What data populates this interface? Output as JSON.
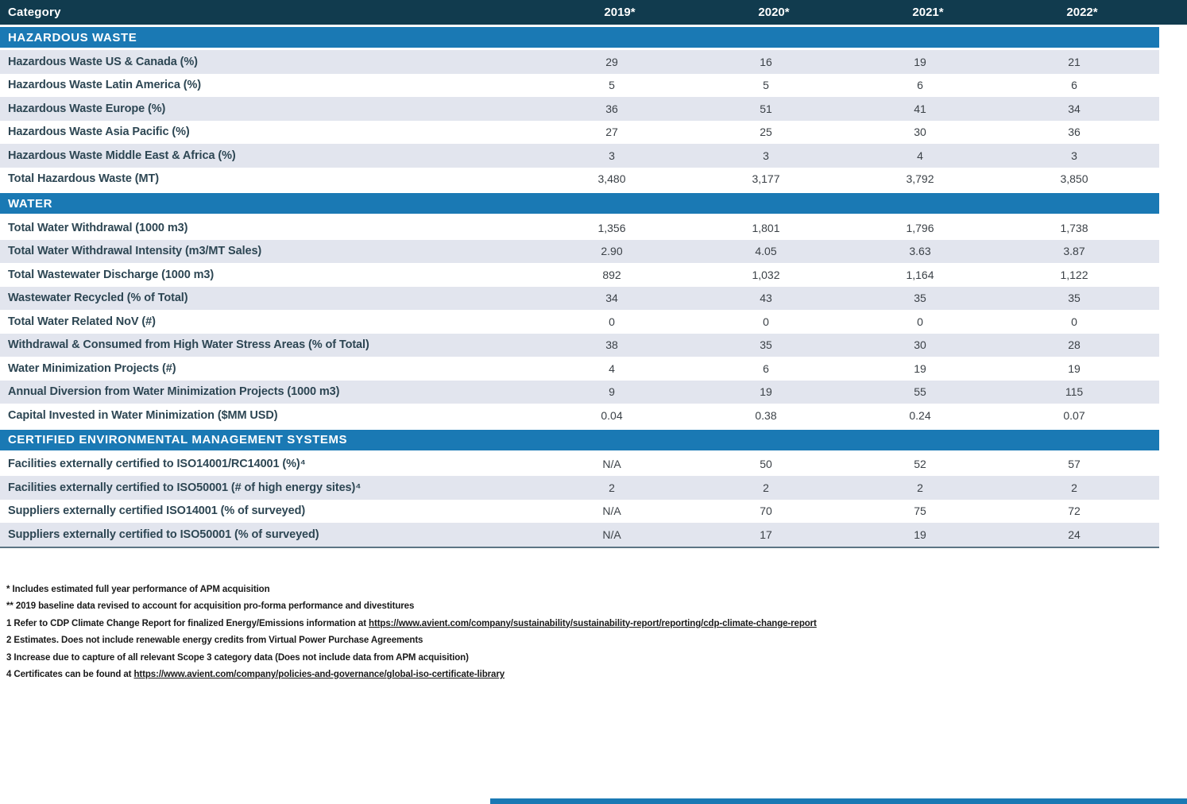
{
  "colors": {
    "header_bg": "#113b4e",
    "section_band_bg": "#1a79b4",
    "shaded_row_bg": "#e2e5ee",
    "label_text": "#2d4653",
    "footer_bar": "#1a79b4"
  },
  "table": {
    "header": {
      "category_label": "Category",
      "years": [
        "2019*",
        "2020*",
        "2021*",
        "2022*"
      ]
    },
    "sections": [
      {
        "title": "HAZARDOUS WASTE",
        "rows": [
          {
            "label": "Hazardous Waste US & Canada (%)",
            "values": [
              "29",
              "16",
              "19",
              "21"
            ]
          },
          {
            "label": "Hazardous Waste Latin America (%)",
            "values": [
              "5",
              "5",
              "6",
              "6"
            ]
          },
          {
            "label": "Hazardous Waste Europe (%)",
            "values": [
              "36",
              "51",
              "41",
              "34"
            ]
          },
          {
            "label": "Hazardous Waste Asia Pacific (%)",
            "values": [
              "27",
              "25",
              "30",
              "36"
            ]
          },
          {
            "label": "Hazardous Waste Middle East & Africa (%)",
            "values": [
              "3",
              "3",
              "4",
              "3"
            ]
          },
          {
            "label": "Total Hazardous Waste (MT)",
            "values": [
              "3,480",
              "3,177",
              "3,792",
              "3,850"
            ]
          }
        ]
      },
      {
        "title": "WATER",
        "rows": [
          {
            "label": "Total Water Withdrawal (1000 m3)",
            "values": [
              "1,356",
              "1,801",
              "1,796",
              "1,738"
            ]
          },
          {
            "label": "Total Water Withdrawal Intensity (m3/MT Sales)",
            "values": [
              "2.90",
              "4.05",
              "3.63",
              "3.87"
            ]
          },
          {
            "label": "Total Wastewater Discharge (1000 m3)",
            "values": [
              "892",
              "1,032",
              "1,164",
              "1,122"
            ]
          },
          {
            "label": "Wastewater Recycled (% of Total)",
            "values": [
              "34",
              "43",
              "35",
              "35"
            ]
          },
          {
            "label": "Total Water Related NoV (#)",
            "values": [
              "0",
              "0",
              "0",
              "0"
            ]
          },
          {
            "label": "Withdrawal & Consumed from High Water Stress Areas (% of Total)",
            "values": [
              "38",
              "35",
              "30",
              "28"
            ]
          },
          {
            "label": "Water Minimization Projects (#)",
            "values": [
              "4",
              "6",
              "19",
              "19"
            ]
          },
          {
            "label": "Annual Diversion from Water Minimization Projects (1000 m3)",
            "values": [
              "9",
              "19",
              "55",
              "115"
            ]
          },
          {
            "label": "Capital Invested in Water Minimization ($MM USD)",
            "values": [
              "0.04",
              "0.38",
              "0.24",
              "0.07"
            ]
          }
        ]
      },
      {
        "title": "CERTIFIED ENVIRONMENTAL MANAGEMENT SYSTEMS",
        "rows": [
          {
            "label": "Facilities externally certified to ISO14001/RC14001 (%)⁴",
            "values": [
              "N/A",
              "50",
              "52",
              "57"
            ]
          },
          {
            "label": "Facilities externally certified to ISO50001 (# of high energy sites)⁴",
            "values": [
              "2",
              "2",
              "2",
              "2"
            ]
          },
          {
            "label": "Suppliers externally certified ISO14001 (% of surveyed)",
            "values": [
              "N/A",
              "70",
              "75",
              "72"
            ]
          },
          {
            "label": "Suppliers externally certified to ISO50001 (% of surveyed)",
            "values": [
              "N/A",
              "17",
              "19",
              "24"
            ]
          }
        ]
      }
    ]
  },
  "footnotes": [
    {
      "prefix": "* Includes estimated full year performance of APM acquisition",
      "link": ""
    },
    {
      "prefix": "** 2019 baseline data revised to account for acquisition pro-forma performance and divestitures",
      "link": ""
    },
    {
      "prefix": "1 Refer to CDP Climate Change Report for finalized Energy/Emissions information at ",
      "link": "https://www.avient.com/company/sustainability/sustainability-report/reporting/cdp-climate-change-report"
    },
    {
      "prefix": "2 Estimates. Does not include renewable energy credits from Virtual Power Purchase Agreements",
      "link": ""
    },
    {
      "prefix": "3 Increase due to capture of all relevant Scope 3 category data (Does not include data from APM acquisition)",
      "link": ""
    },
    {
      "prefix": "4 Certificates can be found at ",
      "link": "https://www.avient.com/company/policies-and-governance/global-iso-certificate-library"
    }
  ]
}
